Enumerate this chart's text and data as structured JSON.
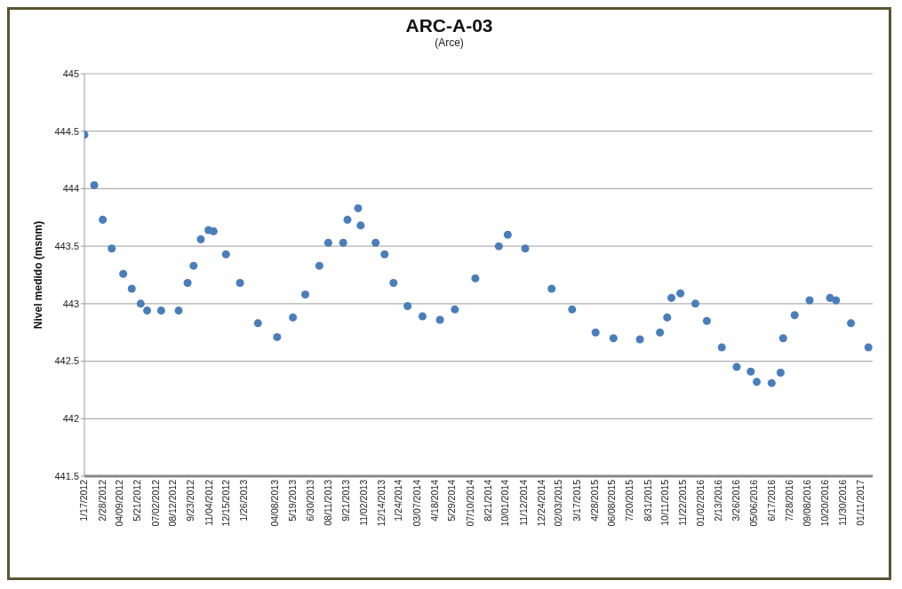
{
  "chart_data": {
    "type": "scatter",
    "title": "ARC-A-03",
    "subtitle": "(Arce)",
    "ylabel": "Nivel medido (msnm)",
    "marker": "circle",
    "grid": "y",
    "legend": false,
    "x": [
      "2012-01-17",
      "2012-02-09",
      "2012-02-29",
      "2012-03-21",
      "2012-04-17",
      "2012-05-07",
      "2012-05-28",
      "2012-06-12",
      "2012-07-15",
      "2012-08-25",
      "2012-09-15",
      "2012-09-29",
      "2012-10-16",
      "2012-11-03",
      "2012-11-15",
      "2012-12-14",
      "2013-01-16",
      "2013-02-27",
      "2013-04-13",
      "2013-05-20",
      "2013-06-18",
      "2013-07-21",
      "2013-08-11",
      "2013-09-15",
      "2013-09-25",
      "2013-10-20",
      "2013-10-26",
      "2013-11-30",
      "2013-12-21",
      "2014-01-11",
      "2014-02-13",
      "2014-03-20",
      "2014-04-30",
      "2014-06-04",
      "2014-07-22",
      "2014-09-15",
      "2014-10-06",
      "2014-11-16",
      "2015-01-17",
      "2015-03-06",
      "2015-04-30",
      "2015-06-11",
      "2015-08-12",
      "2015-09-28",
      "2015-10-15",
      "2015-10-25",
      "2015-11-15",
      "2015-12-20",
      "2016-01-16",
      "2016-02-20",
      "2016-03-26",
      "2016-04-28",
      "2016-05-12",
      "2016-06-16",
      "2016-07-07",
      "2016-07-13",
      "2016-08-09",
      "2016-09-13",
      "2016-10-31",
      "2016-11-14",
      "2016-12-19",
      "2017-01-29"
    ],
    "series": [
      {
        "color": "#4a7ebb",
        "values": [
          444.47,
          444.03,
          443.73,
          443.48,
          443.26,
          443.13,
          443.0,
          442.94,
          442.94,
          442.94,
          443.18,
          443.33,
          443.56,
          443.64,
          443.63,
          443.43,
          443.18,
          442.83,
          442.71,
          442.88,
          443.08,
          443.33,
          443.53,
          443.53,
          443.73,
          443.83,
          443.68,
          443.53,
          443.43,
          443.18,
          442.98,
          442.89,
          442.86,
          442.95,
          443.22,
          443.5,
          443.6,
          443.48,
          443.13,
          442.95,
          442.75,
          442.7,
          442.69,
          442.75,
          442.88,
          443.05,
          443.09,
          443.0,
          442.85,
          442.62,
          442.45,
          442.41,
          442.32,
          442.31,
          442.4,
          442.7,
          442.9,
          443.03,
          443.05,
          443.03,
          442.83,
          442.62
        ]
      }
    ],
    "xlim": [
      "2012-01-17",
      "2017-02-08"
    ],
    "xticks": [
      {
        "value": "2012-01-17",
        "label": "1/17/2012"
      },
      {
        "value": "2012-02-28",
        "label": "2/28/2012"
      },
      {
        "value": "2012-04-09",
        "label": "04/09/2012"
      },
      {
        "value": "2012-05-21",
        "label": "5/21/2012"
      },
      {
        "value": "2012-07-02",
        "label": "07/02/2012"
      },
      {
        "value": "2012-08-12",
        "label": "08/12/2012"
      },
      {
        "value": "2012-09-23",
        "label": "9/23/2012"
      },
      {
        "value": "2012-11-04",
        "label": "11/04/2012"
      },
      {
        "value": "2012-12-15",
        "label": "12/15/2012"
      },
      {
        "value": "2013-01-26",
        "label": "1/26/2013"
      },
      {
        "value": "2013-04-08",
        "label": "04/08/2013"
      },
      {
        "value": "2013-05-19",
        "label": "5/19/2013"
      },
      {
        "value": "2013-06-30",
        "label": "6/30/2013"
      },
      {
        "value": "2013-08-11",
        "label": "08/11/2013"
      },
      {
        "value": "2013-09-21",
        "label": "9/21/2013"
      },
      {
        "value": "2013-11-02",
        "label": "11/02/2013"
      },
      {
        "value": "2013-12-14",
        "label": "12/14/2013"
      },
      {
        "value": "2014-01-24",
        "label": "1/24/2014"
      },
      {
        "value": "2014-03-07",
        "label": "03/07/2014"
      },
      {
        "value": "2014-04-18",
        "label": "4/18/2014"
      },
      {
        "value": "2014-05-29",
        "label": "5/29/2014"
      },
      {
        "value": "2014-07-10",
        "label": "07/10/2014"
      },
      {
        "value": "2014-08-21",
        "label": "8/21/2014"
      },
      {
        "value": "2014-10-01",
        "label": "10/01/2014"
      },
      {
        "value": "2014-11-12",
        "label": "11/12/2014"
      },
      {
        "value": "2014-12-24",
        "label": "12/24/2014"
      },
      {
        "value": "2015-02-03",
        "label": "02/03/2015"
      },
      {
        "value": "2015-03-17",
        "label": "3/17/2015"
      },
      {
        "value": "2015-04-28",
        "label": "4/28/2015"
      },
      {
        "value": "2015-06-08",
        "label": "06/08/2015"
      },
      {
        "value": "2015-07-20",
        "label": "7/20/2015"
      },
      {
        "value": "2015-08-31",
        "label": "8/31/2015"
      },
      {
        "value": "2015-10-11",
        "label": "10/11/2015"
      },
      {
        "value": "2015-11-22",
        "label": "11/22/2015"
      },
      {
        "value": "2016-01-02",
        "label": "01/02/2016"
      },
      {
        "value": "2016-02-13",
        "label": "2/13/2016"
      },
      {
        "value": "2016-03-26",
        "label": "3/26/2016"
      },
      {
        "value": "2016-05-06",
        "label": "05/06/2016"
      },
      {
        "value": "2016-06-17",
        "label": "6/17/2016"
      },
      {
        "value": "2016-07-28",
        "label": "7/28/2016"
      },
      {
        "value": "2016-09-08",
        "label": "09/08/2016"
      },
      {
        "value": "2016-10-20",
        "label": "10/20/2016"
      },
      {
        "value": "2016-11-30",
        "label": "11/30/2016"
      },
      {
        "value": "2017-01-11",
        "label": "01/11/2017"
      }
    ],
    "ylim": [
      441.5,
      445
    ],
    "yticks": [
      441.5,
      442,
      442.5,
      443,
      443.5,
      444,
      444.5,
      445
    ]
  }
}
